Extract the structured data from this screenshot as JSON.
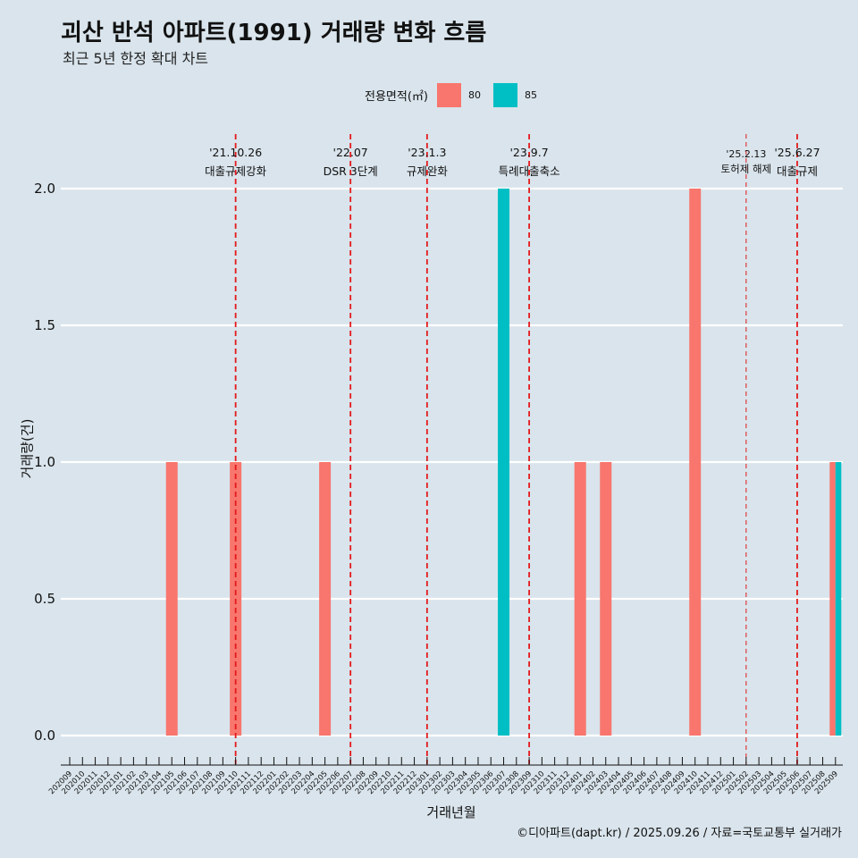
{
  "chart_data": {
    "type": "bar",
    "title": "괴산 반석 아파트(1991) 거래량 변화 흐름",
    "subtitle": "최근 5년 한정 확대 차트",
    "xlabel": "거래년월",
    "ylabel": "거래량(건)",
    "ylim": [
      0,
      2
    ],
    "yticks": [
      "0.0",
      "0.5",
      "1.0",
      "1.5",
      "2.0"
    ],
    "grid": "horizontal",
    "legend_title": "전용면적(㎡)",
    "legend_position": "top",
    "categories": [
      "202009",
      "202010",
      "202011",
      "202012",
      "202101",
      "202102",
      "202103",
      "202104",
      "202105",
      "202106",
      "202107",
      "202108",
      "202109",
      "202110",
      "202111",
      "202112",
      "202201",
      "202202",
      "202203",
      "202204",
      "202205",
      "202206",
      "202207",
      "202208",
      "202209",
      "202210",
      "202211",
      "202212",
      "202301",
      "202302",
      "202303",
      "202304",
      "202305",
      "202306",
      "202307",
      "202308",
      "202309",
      "202310",
      "202311",
      "202312",
      "202401",
      "202402",
      "202403",
      "202404",
      "202405",
      "202406",
      "202407",
      "202408",
      "202409",
      "202410",
      "202411",
      "202412",
      "202501",
      "202502",
      "202503",
      "202504",
      "202505",
      "202506",
      "202507",
      "202508",
      "202509"
    ],
    "series": [
      {
        "name": "80",
        "color": "#f8766d",
        "points": [
          {
            "x": "202105",
            "y": 1
          },
          {
            "x": "202110",
            "y": 1
          },
          {
            "x": "202205",
            "y": 1
          },
          {
            "x": "202401",
            "y": 1
          },
          {
            "x": "202403",
            "y": 1
          },
          {
            "x": "202410",
            "y": 2
          },
          {
            "x": "202509",
            "y": 1
          }
        ]
      },
      {
        "name": "85",
        "color": "#00bfc4",
        "points": [
          {
            "x": "202307",
            "y": 2
          },
          {
            "x": "202509",
            "y": 1
          }
        ]
      }
    ],
    "events": [
      {
        "x": "202110",
        "date": "'21.10.26",
        "label": "대출규제강화",
        "style": "major"
      },
      {
        "x": "202207",
        "date": "'22.07",
        "label": "DSR 3단계",
        "style": "major"
      },
      {
        "x": "202301",
        "date": "'23.1.3",
        "label": "규제완화",
        "style": "major"
      },
      {
        "x": "202309",
        "date": "'23.9.7",
        "label": "특례대출축소",
        "style": "major"
      },
      {
        "x": "202502",
        "date": "'25.2.13",
        "label": "토허제 해제",
        "style": "minor"
      },
      {
        "x": "202506",
        "date": "'25.6.27",
        "label": "대출규제",
        "style": "major"
      }
    ]
  },
  "caption": "©디아파트(dapt.kr) / 2025.09.26 / 자료=국토교통부 실거래가"
}
